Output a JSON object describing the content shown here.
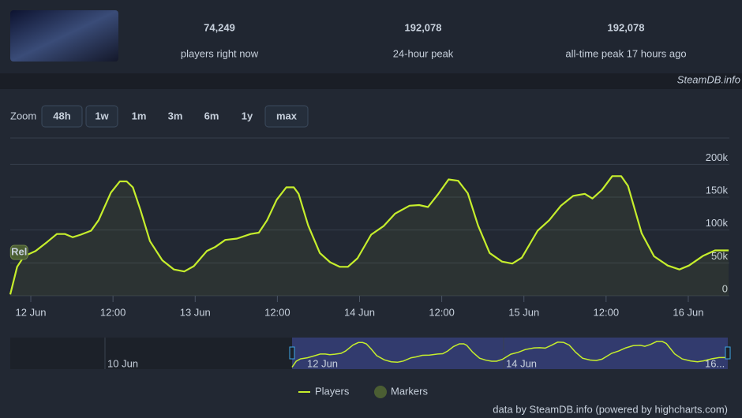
{
  "header": {
    "stats": [
      {
        "value": "74,249",
        "label": "players right now"
      },
      {
        "value": "192,078",
        "label": "24-hour peak"
      },
      {
        "value": "192,078",
        "label": "all-time peak 17 hours ago"
      }
    ],
    "brand": "SteamDB.info"
  },
  "zoom": {
    "label": "Zoom",
    "buttons": [
      {
        "label": "48h",
        "enabled": true
      },
      {
        "label": "1w",
        "enabled": true
      },
      {
        "label": "1m",
        "enabled": false
      },
      {
        "label": "3m",
        "enabled": false
      },
      {
        "label": "6m",
        "enabled": false
      },
      {
        "label": "1y",
        "enabled": false
      },
      {
        "label": "max",
        "enabled": true
      }
    ]
  },
  "chart_data": {
    "type": "line",
    "x": [
      -3,
      -2,
      -1,
      0.7,
      2.4,
      3.8,
      5,
      6.1,
      7.3,
      8.8,
      9.9,
      11.7,
      13,
      14,
      14.9,
      16,
      17.4,
      19.2,
      20.9,
      22.4,
      23.8,
      25.7,
      26.9,
      28.4,
      30.1,
      32.1,
      33.3,
      34.5,
      35.9,
      37.3,
      38.4,
      39.1,
      40.5,
      42.2,
      43.7,
      45.1,
      46.3,
      47.7,
      49.7,
      51.5,
      53.2,
      55.3,
      56.7,
      58,
      59.5,
      61,
      62.4,
      63.8,
      65.3,
      67,
      68.8,
      70.3,
      71.7,
      74,
      75.7,
      77.4,
      79.2,
      80.9,
      82,
      83.4,
      84.9,
      86.2,
      87.2,
      89.2,
      91,
      93,
      94.7,
      96.1,
      98.2,
      99.9,
      101.9
    ],
    "series": [
      {
        "name": "Players",
        "color": "#c6ee2c",
        "values": [
          2000,
          44000,
          60000,
          68000,
          82000,
          94000,
          94000,
          89000,
          93000,
          99000,
          115000,
          157000,
          174000,
          174000,
          165000,
          131000,
          83000,
          54000,
          40000,
          37000,
          45000,
          68000,
          74000,
          85000,
          87000,
          94000,
          96000,
          115000,
          146000,
          165000,
          165000,
          155000,
          107000,
          65000,
          51000,
          44000,
          44000,
          57000,
          93000,
          106000,
          125000,
          137000,
          138000,
          135000,
          155000,
          177000,
          175000,
          156000,
          107000,
          65000,
          52000,
          49000,
          58000,
          99000,
          115000,
          137000,
          152000,
          155000,
          148000,
          161000,
          182000,
          182000,
          167000,
          95000,
          60000,
          46000,
          40000,
          46000,
          61000,
          69000,
          69000
        ]
      }
    ],
    "xlim": [
      -3,
      102
    ],
    "xticks": [
      {
        "value": 0,
        "label": "12 Jun"
      },
      {
        "value": 12,
        "label": "12:00"
      },
      {
        "value": 24,
        "label": "13 Jun"
      },
      {
        "value": 36,
        "label": "12:00"
      },
      {
        "value": 48,
        "label": "14 Jun"
      },
      {
        "value": 60,
        "label": "12:00"
      },
      {
        "value": 72,
        "label": "15 Jun"
      },
      {
        "value": 84,
        "label": "12:00"
      },
      {
        "value": 96,
        "label": "16 Jun"
      }
    ],
    "ylim": [
      0,
      240000
    ],
    "yticks": [
      0,
      {
        "value": 50000,
        "label": "50k"
      },
      {
        "value": 100000,
        "label": "100k"
      },
      {
        "value": 150000,
        "label": "150k"
      },
      {
        "value": 200000,
        "label": "200k"
      }
    ],
    "grid": true,
    "markers": {
      "name": "Markers",
      "color": "#4b5e33",
      "points": [
        {
          "x": -1.7,
          "label": "Rel"
        }
      ]
    }
  },
  "navigator": {
    "labels": [
      "10 Jun",
      "12 Jun",
      "14 Jun",
      "16..."
    ]
  },
  "credits": "data by SteamDB.info (powered by highcharts.com)"
}
